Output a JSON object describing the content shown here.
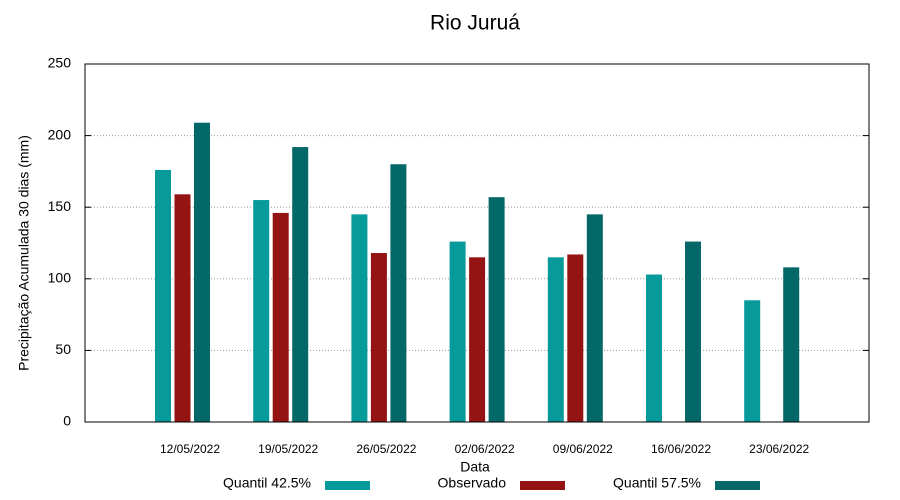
{
  "chart_data": {
    "type": "bar",
    "title": "Rio Juruá",
    "x_label": "Data",
    "y_label": "Precipitação Acumulada 30 dias (mm)",
    "categories": [
      "12/05/2022",
      "19/05/2022",
      "26/05/2022",
      "02/06/2022",
      "09/06/2022",
      "16/06/2022",
      "23/06/2022"
    ],
    "series": [
      {
        "name": "Quantil 42.5%",
        "color": "#079a9a",
        "values": [
          176,
          155,
          145,
          126,
          115,
          103,
          85
        ]
      },
      {
        "name": "Observado",
        "color": "#941313",
        "values": [
          159,
          146,
          118,
          115,
          117,
          null,
          null
        ]
      },
      {
        "name": "Quantil 57.5%",
        "color": "#046868",
        "values": [
          209,
          192,
          180,
          157,
          145,
          126,
          108
        ]
      }
    ],
    "ylim": [
      0,
      250
    ],
    "yticks": [
      0,
      50,
      100,
      150,
      200,
      250
    ],
    "grid": true
  }
}
